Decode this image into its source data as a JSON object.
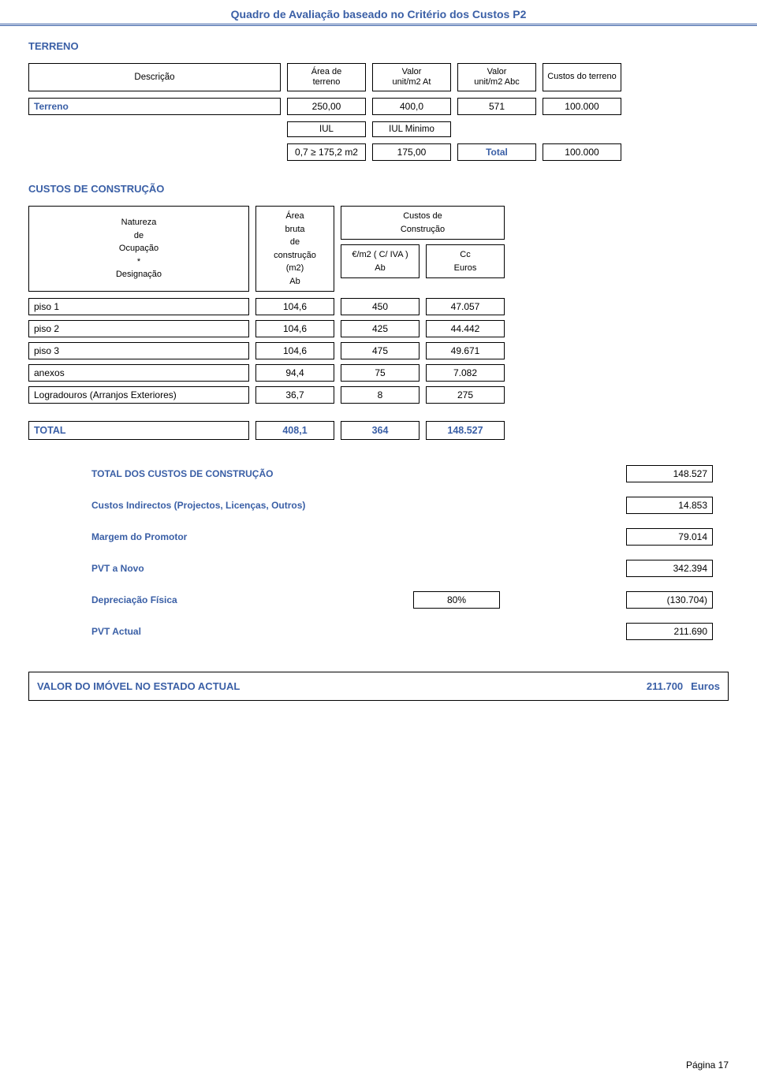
{
  "page_title": "Quadro de Avaliação baseado no Critério dos Custos P2",
  "terreno": {
    "section": "TERRENO",
    "headers": {
      "desc": "Descrição",
      "area": [
        "Área de",
        "terreno"
      ],
      "unit_at": [
        "Valor",
        "unit/m2 At"
      ],
      "unit_abc": [
        "Valor",
        "unit/m2 Abc"
      ],
      "custos": "Custos do terreno"
    },
    "row": {
      "label": "Terreno",
      "area": "250,00",
      "at": "400,0",
      "abc": "571",
      "custo": "100.000"
    },
    "iul": {
      "l1": "IUL",
      "l2": "IUL Minimo"
    },
    "iul_row": {
      "c1": "0,7 ≥ 175,2 m2",
      "c2": "175,00",
      "tot_label": "Total",
      "tot_val": "100.000"
    }
  },
  "custos": {
    "section": "CUSTOS DE CONSTRUÇÃO",
    "head": {
      "col1": [
        "Natureza",
        "de",
        "Ocupação",
        "*",
        "Designação"
      ],
      "col2": [
        "Área",
        "bruta",
        "de",
        "construção",
        "(m2)",
        "Ab"
      ],
      "custos_box": [
        "Custos de",
        "Construção"
      ],
      "sub1": [
        "€/m2 ( C/ IVA )",
        "Ab"
      ],
      "sub2": [
        "Cc",
        "Euros"
      ]
    },
    "rows": [
      {
        "l": "piso 1",
        "a": "104,6",
        "b": "450",
        "c": "47.057"
      },
      {
        "l": "piso 2",
        "a": "104,6",
        "b": "425",
        "c": "44.442"
      },
      {
        "l": "piso 3",
        "a": "104,6",
        "b": "475",
        "c": "49.671"
      },
      {
        "l": "anexos",
        "a": "94,4",
        "b": "75",
        "c": "7.082"
      },
      {
        "l": "Logradouros (Arranjos Exteriores)",
        "a": "36,7",
        "b": "8",
        "c": "275"
      }
    ],
    "total": {
      "label": "TOTAL",
      "a": "408,1",
      "b": "364",
      "c": "148.527"
    }
  },
  "summary": {
    "items": [
      {
        "label": "TOTAL DOS CUSTOS DE CONSTRUÇÃO",
        "value": "148.527"
      },
      {
        "label": "Custos Indirectos (Projectos, Licenças, Outros)",
        "value": "14.853"
      },
      {
        "label": "Margem do Promotor",
        "value": "79.014"
      },
      {
        "label": "PVT a Novo",
        "value": "342.394"
      },
      {
        "label": "Depreciação Física",
        "mid": "80%",
        "value": "(130.704)"
      },
      {
        "label": "PVT Actual",
        "value": "211.690"
      }
    ]
  },
  "final": {
    "label": "VALOR DO IMÓVEL NO ESTADO ACTUAL",
    "amount": "211.700",
    "unit": "Euros"
  },
  "page_number": "Página 17"
}
